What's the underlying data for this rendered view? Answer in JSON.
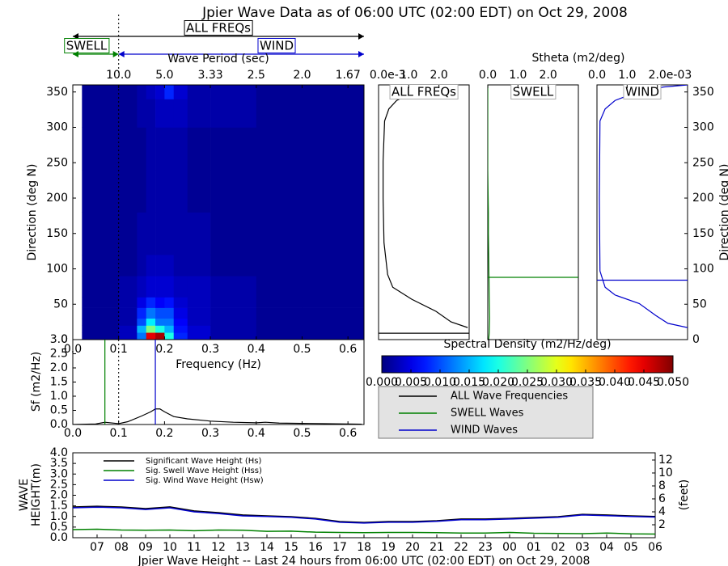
{
  "chart_data": [
    {
      "type": "heatmap",
      "title": "Jpier Wave Data as of 06:00 UTC (02:00 EDT) on Oct 29, 2008",
      "x_label": "Frequency (Hz)",
      "y_label": "Direction (deg N)",
      "x2_label": "Wave Period (sec)",
      "colormap": "jet",
      "clim": [
        0,
        0.05
      ],
      "x_edges": [
        0.02,
        0.1,
        0.14,
        0.16,
        0.18,
        0.2,
        0.22,
        0.25,
        0.3,
        0.4,
        0.5,
        0.635
      ],
      "y_edges": [
        0,
        10,
        20,
        30,
        45,
        60,
        90,
        120,
        180,
        240,
        300,
        340,
        360
      ],
      "values": [
        [
          0.001,
          0.003,
          0.012,
          0.045,
          0.048,
          0.02,
          0.008,
          0.004,
          0.002,
          0.001,
          0.001
        ],
        [
          0.001,
          0.003,
          0.015,
          0.025,
          0.02,
          0.015,
          0.007,
          0.004,
          0.002,
          0.001,
          0.001
        ],
        [
          0.001,
          0.002,
          0.01,
          0.018,
          0.012,
          0.012,
          0.006,
          0.003,
          0.002,
          0.001,
          0.001
        ],
        [
          0.001,
          0.002,
          0.008,
          0.012,
          0.01,
          0.01,
          0.005,
          0.003,
          0.002,
          0.001,
          0.001
        ],
        [
          0.001,
          0.002,
          0.005,
          0.008,
          0.006,
          0.007,
          0.004,
          0.003,
          0.002,
          0.001,
          0.001
        ],
        [
          0.001,
          0.002,
          0.003,
          0.004,
          0.004,
          0.004,
          0.003,
          0.003,
          0.002,
          0.001,
          0.001
        ],
        [
          0.001,
          0.001,
          0.002,
          0.003,
          0.003,
          0.003,
          0.002,
          0.002,
          0.001,
          0.001,
          0.001
        ],
        [
          0.001,
          0.001,
          0.002,
          0.002,
          0.002,
          0.002,
          0.002,
          0.002,
          0.001,
          0.001,
          0.001
        ],
        [
          0.001,
          0.001,
          0.001,
          0.002,
          0.002,
          0.002,
          0.002,
          0.001,
          0.001,
          0.001,
          0.001
        ],
        [
          0.001,
          0.001,
          0.001,
          0.002,
          0.002,
          0.002,
          0.002,
          0.001,
          0.001,
          0.001,
          0.001
        ],
        [
          0.001,
          0.001,
          0.002,
          0.002,
          0.003,
          0.003,
          0.003,
          0.002,
          0.002,
          0.001,
          0.001
        ],
        [
          0.001,
          0.001,
          0.002,
          0.003,
          0.004,
          0.008,
          0.004,
          0.002,
          0.002,
          0.001,
          0.001
        ]
      ],
      "xlim": [
        0,
        0.635
      ],
      "ylim": [
        0,
        360
      ],
      "xticks": [
        {
          "value": 0,
          "label": "0.0"
        },
        0.1,
        0.2,
        0.3,
        0.4,
        0.5,
        0.6
      ],
      "yticks": [
        0,
        50,
        100,
        150,
        200,
        250,
        300,
        350
      ],
      "x2ticks": [
        {
          "value": 0.1,
          "label": "10.0"
        },
        {
          "value": 0.2,
          "label": "5.0"
        },
        {
          "value": 0.3,
          "label": "3.33"
        },
        {
          "value": 0.4,
          "label": "2.5"
        },
        {
          "value": 0.5,
          "label": "2.0"
        },
        {
          "value": 0.6,
          "label": "1.67"
        }
      ],
      "divider": 0.1,
      "arrows": [
        {
          "label": "ALL FREQs",
          "color": "#000000"
        },
        {
          "label": "SWELL",
          "color": "#008000"
        },
        {
          "label": "WIND",
          "color": "#0000cc"
        }
      ]
    },
    {
      "type": "profile",
      "label": "ALL FREQs",
      "color": "#000000",
      "offset_text": "e-3",
      "directions": [
        17,
        25,
        40,
        57,
        74,
        92,
        137,
        200,
        252,
        309,
        326,
        338,
        349,
        357,
        360
      ],
      "values": [
        2.95,
        2.4,
        1.9,
        1.1,
        0.47,
        0.3,
        0.18,
        0.15,
        0.15,
        0.2,
        0.34,
        0.6,
        1.13,
        1.9,
        2.3
      ],
      "mean_direction": 9,
      "xlim": [
        0,
        3
      ],
      "xticks": [
        {
          "value": 0,
          "label": "0.0"
        },
        {
          "value": 1,
          "label": "1.0"
        },
        {
          "value": 2,
          "label": "2.0"
        }
      ],
      "ylim": [
        0,
        360
      ]
    },
    {
      "type": "profile",
      "label": "SWELL",
      "color": "#008000",
      "x_label": "Stheta (m2/deg)",
      "directions": [
        0,
        10,
        30,
        60,
        90,
        120,
        150,
        180,
        210,
        240,
        300,
        360
      ],
      "values": [
        0.03,
        0.05,
        0.06,
        0.05,
        0.04,
        0.03,
        0.02,
        0.02,
        0.01,
        0,
        0,
        0
      ],
      "mean_direction": 88,
      "xlim": [
        0,
        3
      ],
      "xticks": [
        {
          "value": 0,
          "label": "0.0"
        },
        {
          "value": 1,
          "label": "1.0"
        },
        {
          "value": 2,
          "label": "2.0"
        }
      ],
      "ylim": [
        0,
        360
      ]
    },
    {
      "type": "profile",
      "label": "WIND",
      "color": "#0000cc",
      "offset_text": "e-03",
      "y_label": "Direction (deg N)",
      "directions": [
        17,
        23,
        34,
        51,
        63,
        74,
        97,
        200,
        309,
        326,
        338,
        349,
        357,
        360
      ],
      "values": [
        3.0,
        2.35,
        1.95,
        1.4,
        0.6,
        0.27,
        0.1,
        0.08,
        0.1,
        0.27,
        0.6,
        1.27,
        2.2,
        3.0
      ],
      "mean_direction": 84,
      "xlim": [
        0,
        3
      ],
      "xticks": [
        {
          "value": 0,
          "label": "0.0"
        },
        {
          "value": 1,
          "label": "1.0"
        },
        {
          "value": 2,
          "label": "2.0"
        }
      ],
      "ylim": [
        0,
        360
      ],
      "yticks": [
        0,
        50,
        100,
        150,
        200,
        250,
        300,
        350
      ]
    },
    {
      "type": "colorbar",
      "title": "Spectral Density (m2/Hz/deg)",
      "colormap": "jet",
      "xlim": [
        0,
        0.05
      ],
      "xticks": [
        {
          "value": 0,
          "label": "0.000"
        },
        {
          "value": 0.005,
          "label": "0.005"
        },
        {
          "value": 0.01,
          "label": "0.010"
        },
        {
          "value": 0.015,
          "label": "0.015"
        },
        {
          "value": 0.02,
          "label": "0.020"
        },
        {
          "value": 0.025,
          "label": "0.025"
        },
        {
          "value": 0.03,
          "label": "0.030"
        },
        {
          "value": 0.035,
          "label": "0.035"
        },
        {
          "value": 0.04,
          "label": "0.040"
        },
        {
          "value": 0.045,
          "label": "0.045"
        },
        {
          "value": 0.05,
          "label": "0.050"
        }
      ]
    },
    {
      "type": "spectrum",
      "y_label": "Sf (m2/Hz)",
      "x": [
        0,
        0.05,
        0.07,
        0.1,
        0.12,
        0.15,
        0.17,
        0.18,
        0.19,
        0.2,
        0.22,
        0.25,
        0.3,
        0.35,
        0.4,
        0.42,
        0.45,
        0.5,
        0.55,
        0.6,
        0.63
      ],
      "series": [
        {
          "name": "ALL Wave Frequencies",
          "color": "#000000",
          "values": [
            0,
            0.02,
            0.08,
            0.03,
            0.1,
            0.3,
            0.45,
            0.55,
            0.55,
            0.45,
            0.28,
            0.2,
            0.12,
            0.08,
            0.06,
            0.08,
            0.05,
            0.04,
            0.03,
            0.02,
            0.01
          ]
        },
        {
          "name": "SWELL Waves",
          "color": "#008000",
          "peak": 0.07
        },
        {
          "name": "WIND Waves",
          "color": "#0000cc",
          "peak": 0.18
        }
      ],
      "xlim": [
        0,
        0.635
      ],
      "ylim": [
        0,
        3
      ],
      "xticks": [
        {
          "value": 0,
          "label": "0.0"
        },
        0.1,
        0.2,
        0.3,
        0.4,
        0.5,
        0.6
      ],
      "yticks": [
        {
          "value": 0,
          "label": "0.0"
        },
        0.5,
        {
          "value": 1,
          "label": "1.0"
        },
        1.5,
        {
          "value": 2,
          "label": "2.0"
        },
        2.5,
        {
          "value": 3,
          "label": "3.0"
        }
      ],
      "divider": 0.1
    },
    {
      "type": "line",
      "x_label": "Jpier Wave Height -- Last 24 hours from 06:00 UTC (02:00 EDT) on Oct 29, 2008",
      "y_label": [
        "WAVE",
        "HEIGHT(m)"
      ],
      "y2_label": "(feet)",
      "categories": [
        null,
        "07",
        "08",
        "09",
        "10",
        "11",
        "12",
        "13",
        "14",
        "15",
        "16",
        "17",
        "18",
        "19",
        "20",
        "21",
        "22",
        "23",
        "00",
        "01",
        "02",
        "03",
        "04",
        "05",
        "06"
      ],
      "series": [
        {
          "name": "Significant Wave Height (Hs)",
          "color": "#000000",
          "values": [
            1.45,
            1.48,
            1.45,
            1.37,
            1.45,
            1.26,
            1.18,
            1.07,
            1.03,
            0.99,
            0.91,
            0.76,
            0.72,
            0.76,
            0.76,
            0.8,
            0.88,
            0.88,
            0.91,
            0.95,
            0.99,
            1.1,
            1.07,
            1.03,
            1.0
          ]
        },
        {
          "name": "Sig. Swell Wave Height (Hss)",
          "color": "#008000",
          "values": [
            0.38,
            0.4,
            0.36,
            0.35,
            0.36,
            0.33,
            0.36,
            0.35,
            0.3,
            0.31,
            0.26,
            0.25,
            0.24,
            0.25,
            0.25,
            0.24,
            0.22,
            0.22,
            0.25,
            0.21,
            0.2,
            0.19,
            0.22,
            0.18,
            0.17
          ]
        },
        {
          "name": "Sig. Wind Wave Height (Hsw)",
          "color": "#0000cc",
          "values": [
            1.41,
            1.44,
            1.41,
            1.33,
            1.41,
            1.22,
            1.14,
            1.03,
            1.0,
            0.96,
            0.88,
            0.73,
            0.69,
            0.73,
            0.73,
            0.77,
            0.85,
            0.85,
            0.88,
            0.92,
            0.96,
            1.07,
            1.04,
            1.0,
            0.97
          ]
        }
      ],
      "ylim": [
        0,
        4
      ],
      "yticks": [
        {
          "value": 0,
          "label": "0.0"
        },
        0.5,
        {
          "value": 1,
          "label": "1.0"
        },
        1.5,
        {
          "value": 2,
          "label": "2.0"
        },
        2.5,
        {
          "value": 3,
          "label": "3.0"
        },
        3.5,
        {
          "value": 4,
          "label": "4.0"
        }
      ],
      "y2lim": [
        0,
        13.12
      ],
      "y2ticks": [
        2,
        4,
        6,
        8,
        10,
        12
      ]
    }
  ]
}
